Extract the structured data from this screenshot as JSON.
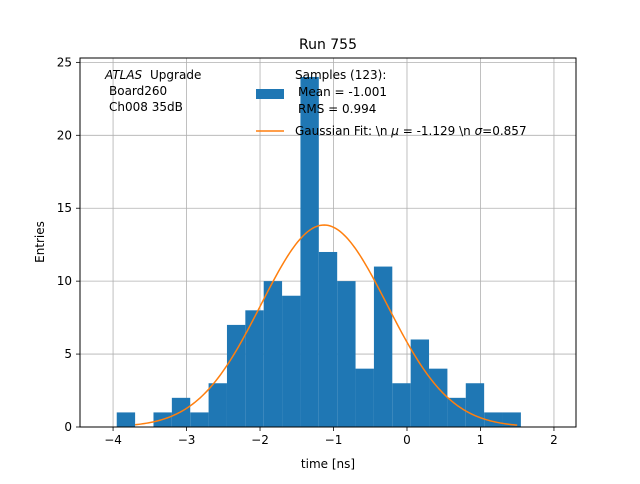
{
  "chart_data": {
    "type": "bar",
    "title": "Run 755",
    "xlabel": "time [ns]",
    "ylabel": "Entries",
    "xlim": [
      -4.45,
      2.3
    ],
    "ylim": [
      0,
      25.3
    ],
    "xticks": [
      -4,
      -3,
      -2,
      -1,
      0,
      1,
      2
    ],
    "yticks": [
      0,
      5,
      10,
      15,
      20,
      25
    ],
    "grid": true,
    "colors": {
      "hist": "#1f77b4",
      "fit": "#ff7f0e",
      "grid": "#b0b0b0"
    },
    "annotation": {
      "lines": [
        "Upgrade",
        "Board260",
        "Ch008 35dB"
      ],
      "italic_prefix": "ATLAS"
    },
    "histogram": {
      "name": "Samples (123):",
      "stats": [
        "Mean = -1.001",
        "RMS = 0.994"
      ],
      "bin_width": 0.25,
      "bins": [
        {
          "x0": -3.95,
          "count": 1
        },
        {
          "x0": -3.7,
          "count": 0
        },
        {
          "x0": -3.45,
          "count": 1
        },
        {
          "x0": -3.2,
          "count": 2
        },
        {
          "x0": -2.95,
          "count": 1
        },
        {
          "x0": -2.7,
          "count": 3
        },
        {
          "x0": -2.45,
          "count": 7
        },
        {
          "x0": -2.2,
          "count": 8
        },
        {
          "x0": -1.95,
          "count": 10
        },
        {
          "x0": -1.7,
          "count": 9
        },
        {
          "x0": -1.45,
          "count": 24
        },
        {
          "x0": -1.2,
          "count": 12
        },
        {
          "x0": -0.95,
          "count": 10
        },
        {
          "x0": -0.7,
          "count": 4
        },
        {
          "x0": -0.45,
          "count": 11
        },
        {
          "x0": -0.2,
          "count": 3
        },
        {
          "x0": 0.05,
          "count": 6
        },
        {
          "x0": 0.3,
          "count": 4
        },
        {
          "x0": 0.55,
          "count": 2
        },
        {
          "x0": 0.8,
          "count": 3
        },
        {
          "x0": 1.05,
          "count": 1
        },
        {
          "x0": 1.3,
          "count": 1
        }
      ]
    },
    "fit": {
      "label": "Gaussian Fit: \\n μ = -1.129 \\n σ=0.857",
      "label_parts": [
        "Gaussian Fit: \\n ",
        "μ",
        " = -1.129 \\n ",
        "σ",
        "=0.857"
      ],
      "mu": -1.129,
      "sigma": 0.857,
      "amplitude": 13.85,
      "x_range": [
        -3.7,
        1.5
      ]
    },
    "legend_position": "top-center"
  }
}
